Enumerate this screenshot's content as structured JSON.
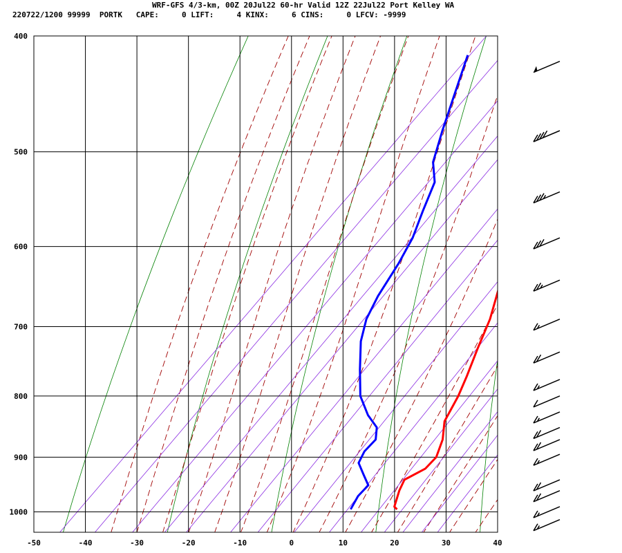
{
  "header": {
    "line1": "WRF-GFS 4/3-km, 00Z 20Jul22 60-hr Valid 12Z 22Jul22 Port Kelley WA",
    "line2": "220722/1200 99999  PORTK   CAPE:     0 LIFT:     4 KINX:     6 CINS:     0 LFCV: -9999"
  },
  "chart_data": {
    "type": "skew-t",
    "title": "WRF-GFS 4/3-km, 00Z 20Jul22 60-hr Valid 12Z 22Jul22 Port Kelley WA",
    "xlabel": "",
    "ylabel": "",
    "xlim": [
      -50,
      40
    ],
    "ylim": [
      1040,
      400
    ],
    "x_ticks": [
      "-50",
      "-40",
      "-30",
      "-20",
      "-10",
      "0",
      "10",
      "20",
      "30",
      "40"
    ],
    "y_ticks": [
      "400",
      "500",
      "600",
      "700",
      "800",
      "900",
      "1000"
    ],
    "grid": true,
    "series": [
      {
        "kind": "temperature",
        "color": "#ff0000",
        "points": [
          [
            -23,
            410
          ],
          [
            -21,
            440
          ],
          [
            -19,
            470
          ],
          [
            -17,
            490
          ],
          [
            -15,
            510
          ],
          [
            -13,
            530
          ],
          [
            -11,
            550
          ],
          [
            -8,
            580
          ],
          [
            -5,
            610
          ],
          [
            -1,
            650
          ],
          [
            3,
            690
          ],
          [
            6,
            730
          ],
          [
            9,
            770
          ],
          [
            11,
            800
          ],
          [
            13,
            840
          ],
          [
            16,
            870
          ],
          [
            18,
            900
          ],
          [
            18,
            920
          ],
          [
            16,
            940
          ],
          [
            17,
            960
          ],
          [
            19,
            990
          ],
          [
            20,
            995
          ]
        ]
      },
      {
        "kind": "dewpoint",
        "color": "#0000ff",
        "points": [
          [
            -50,
            415
          ],
          [
            -45,
            450
          ],
          [
            -41,
            480
          ],
          [
            -37,
            510
          ],
          [
            -33,
            530
          ],
          [
            -30,
            560
          ],
          [
            -27,
            590
          ],
          [
            -25,
            620
          ],
          [
            -23,
            660
          ],
          [
            -21,
            690
          ],
          [
            -18,
            720
          ],
          [
            -13,
            760
          ],
          [
            -8,
            800
          ],
          [
            -3,
            830
          ],
          [
            1,
            850
          ],
          [
            3,
            870
          ],
          [
            3,
            890
          ],
          [
            4,
            910
          ],
          [
            7,
            930
          ],
          [
            10,
            950
          ],
          [
            10,
            970
          ],
          [
            11,
            995
          ]
        ]
      }
    ],
    "winds": [
      {
        "p": 420,
        "kt": 50
      },
      {
        "p": 480,
        "kt": 40
      },
      {
        "p": 540,
        "kt": 35
      },
      {
        "p": 590,
        "kt": 30
      },
      {
        "p": 640,
        "kt": 25
      },
      {
        "p": 690,
        "kt": 15
      },
      {
        "p": 735,
        "kt": 20
      },
      {
        "p": 775,
        "kt": 15
      },
      {
        "p": 800,
        "kt": 10
      },
      {
        "p": 825,
        "kt": 15
      },
      {
        "p": 850,
        "kt": 20
      },
      {
        "p": 870,
        "kt": 20
      },
      {
        "p": 895,
        "kt": 15
      },
      {
        "p": 940,
        "kt": 20
      },
      {
        "p": 960,
        "kt": 20
      },
      {
        "p": 990,
        "kt": 15
      },
      {
        "p": 1015,
        "kt": 15
      }
    ]
  }
}
